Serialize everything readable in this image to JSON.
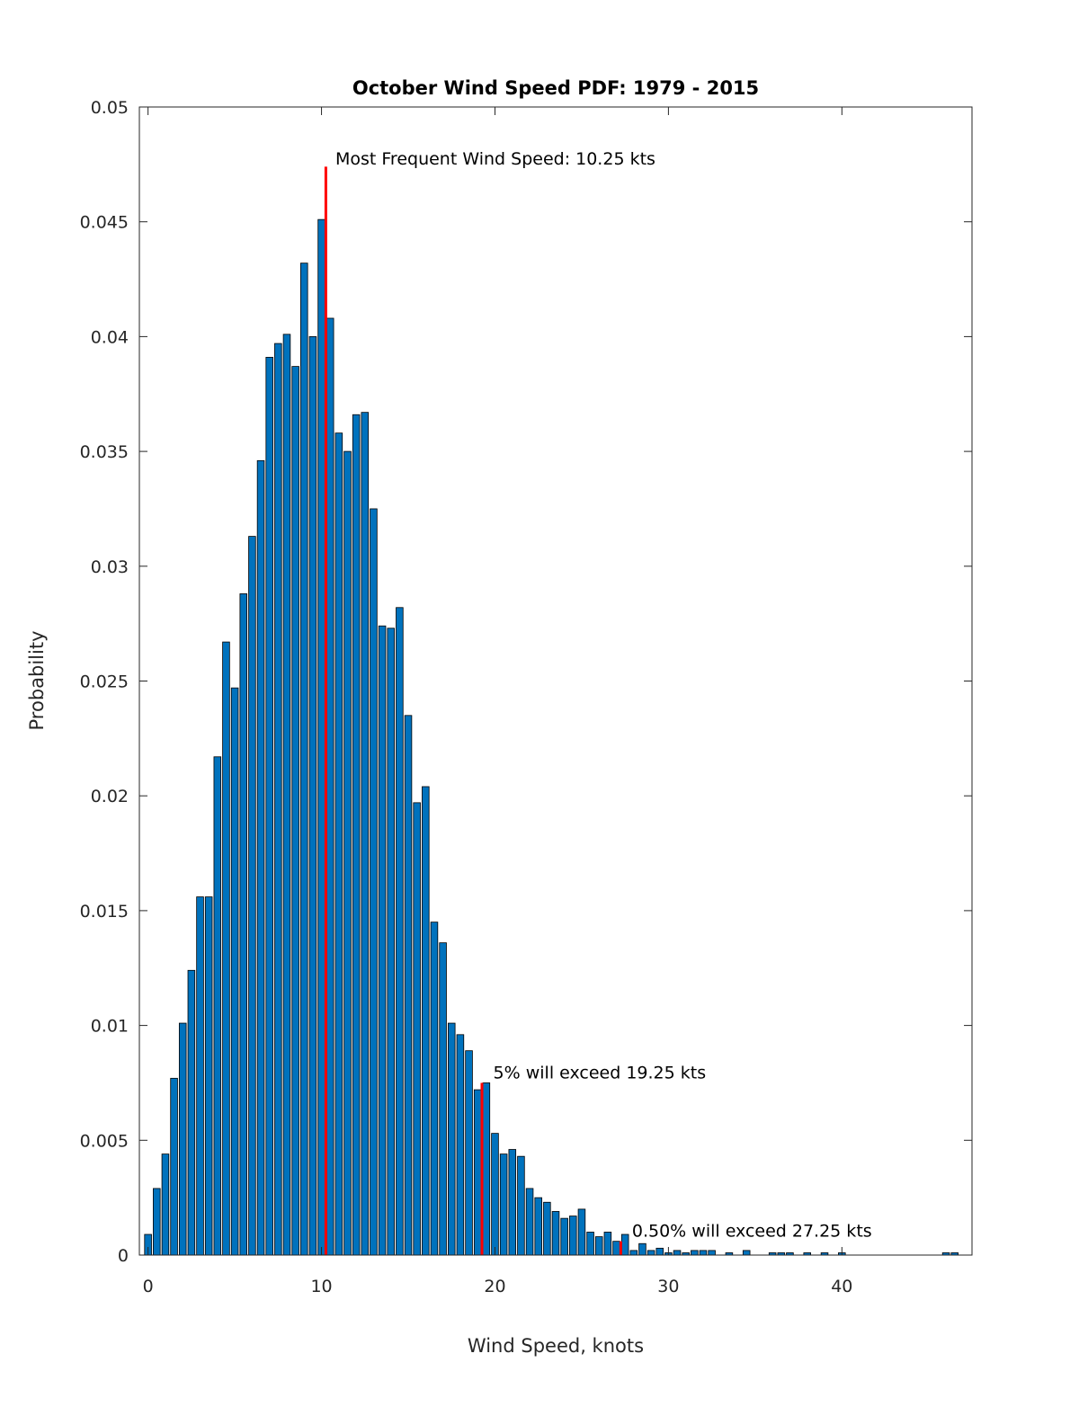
{
  "chart_data": {
    "type": "bar",
    "title": "October Wind Speed PDF: 1979 - 2015",
    "xlabel": "Wind Speed, knots",
    "ylabel": "Probability",
    "xlim": [
      -0.5,
      47.5
    ],
    "ylim": [
      0,
      0.05
    ],
    "xticks": [
      0,
      10,
      20,
      30,
      40
    ],
    "yticks": [
      0,
      0.005,
      0.01,
      0.015,
      0.02,
      0.025,
      0.03,
      0.035,
      0.04,
      0.045,
      0.05
    ],
    "ytick_labels": [
      "0",
      "0.005",
      "0.01",
      "0.015",
      "0.02",
      "0.025",
      "0.03",
      "0.035",
      "0.04",
      "0.045",
      "0.05"
    ],
    "grid": false,
    "bar_color": "#0072bd",
    "bar_edge_color": "#000000",
    "marker_color": "#ff0000",
    "bin_width": 0.5,
    "x": [
      0,
      0.5,
      1,
      1.5,
      2,
      2.5,
      3,
      3.5,
      4,
      4.5,
      5,
      5.5,
      6,
      6.5,
      7,
      7.5,
      8,
      8.5,
      9,
      9.5,
      10,
      10.5,
      11,
      11.5,
      12,
      12.5,
      13,
      13.5,
      14,
      14.5,
      15,
      15.5,
      16,
      16.5,
      17,
      17.5,
      18,
      18.5,
      19,
      19.5,
      20,
      20.5,
      21,
      21.5,
      22,
      22.5,
      23,
      23.5,
      24,
      24.5,
      25,
      25.5,
      26,
      26.5,
      27,
      27.5,
      28,
      28.5,
      29,
      29.5,
      30,
      30.5,
      31,
      31.5,
      32,
      32.5,
      33.5,
      34.5,
      36,
      36.5,
      37,
      38,
      39,
      40,
      46,
      46.5
    ],
    "values": [
      0.0009,
      0.0029,
      0.0044,
      0.0077,
      0.0101,
      0.0124,
      0.0156,
      0.0156,
      0.0217,
      0.0267,
      0.0247,
      0.0288,
      0.0313,
      0.0346,
      0.0391,
      0.0397,
      0.0401,
      0.0387,
      0.0432,
      0.04,
      0.0451,
      0.0408,
      0.0358,
      0.035,
      0.0366,
      0.0367,
      0.0325,
      0.0274,
      0.0273,
      0.0282,
      0.0235,
      0.0197,
      0.0204,
      0.0145,
      0.0136,
      0.0101,
      0.0096,
      0.0089,
      0.0072,
      0.0075,
      0.0053,
      0.0044,
      0.0046,
      0.0043,
      0.0029,
      0.0025,
      0.0023,
      0.0019,
      0.0016,
      0.0017,
      0.002,
      0.001,
      0.0008,
      0.001,
      0.0006,
      0.0009,
      0.0002,
      0.0005,
      0.0002,
      0.0003,
      0.0001,
      0.0002,
      0.0001,
      0.0002,
      0.0002,
      0.0002,
      0.0001,
      0.0002,
      0.0001,
      0.0001,
      0.0001,
      0.0001,
      0.0001,
      0.0001,
      0.0001,
      0.0001
    ],
    "markers": [
      {
        "x": 10.25,
        "y_top": 0.0474,
        "label": "Most Frequent Wind Speed: 10.25 kts",
        "label_x": 10.8,
        "label_y": 0.0475
      },
      {
        "x": 19.25,
        "y_top": 0.0075,
        "label": "5% will exceed 19.25 kts",
        "label_x": 19.9,
        "label_y": 0.0077
      },
      {
        "x": 27.25,
        "y_top": 0.0006,
        "label": "0.50% will exceed 27.25 kts",
        "label_x": 27.9,
        "label_y": 0.0008
      }
    ]
  }
}
